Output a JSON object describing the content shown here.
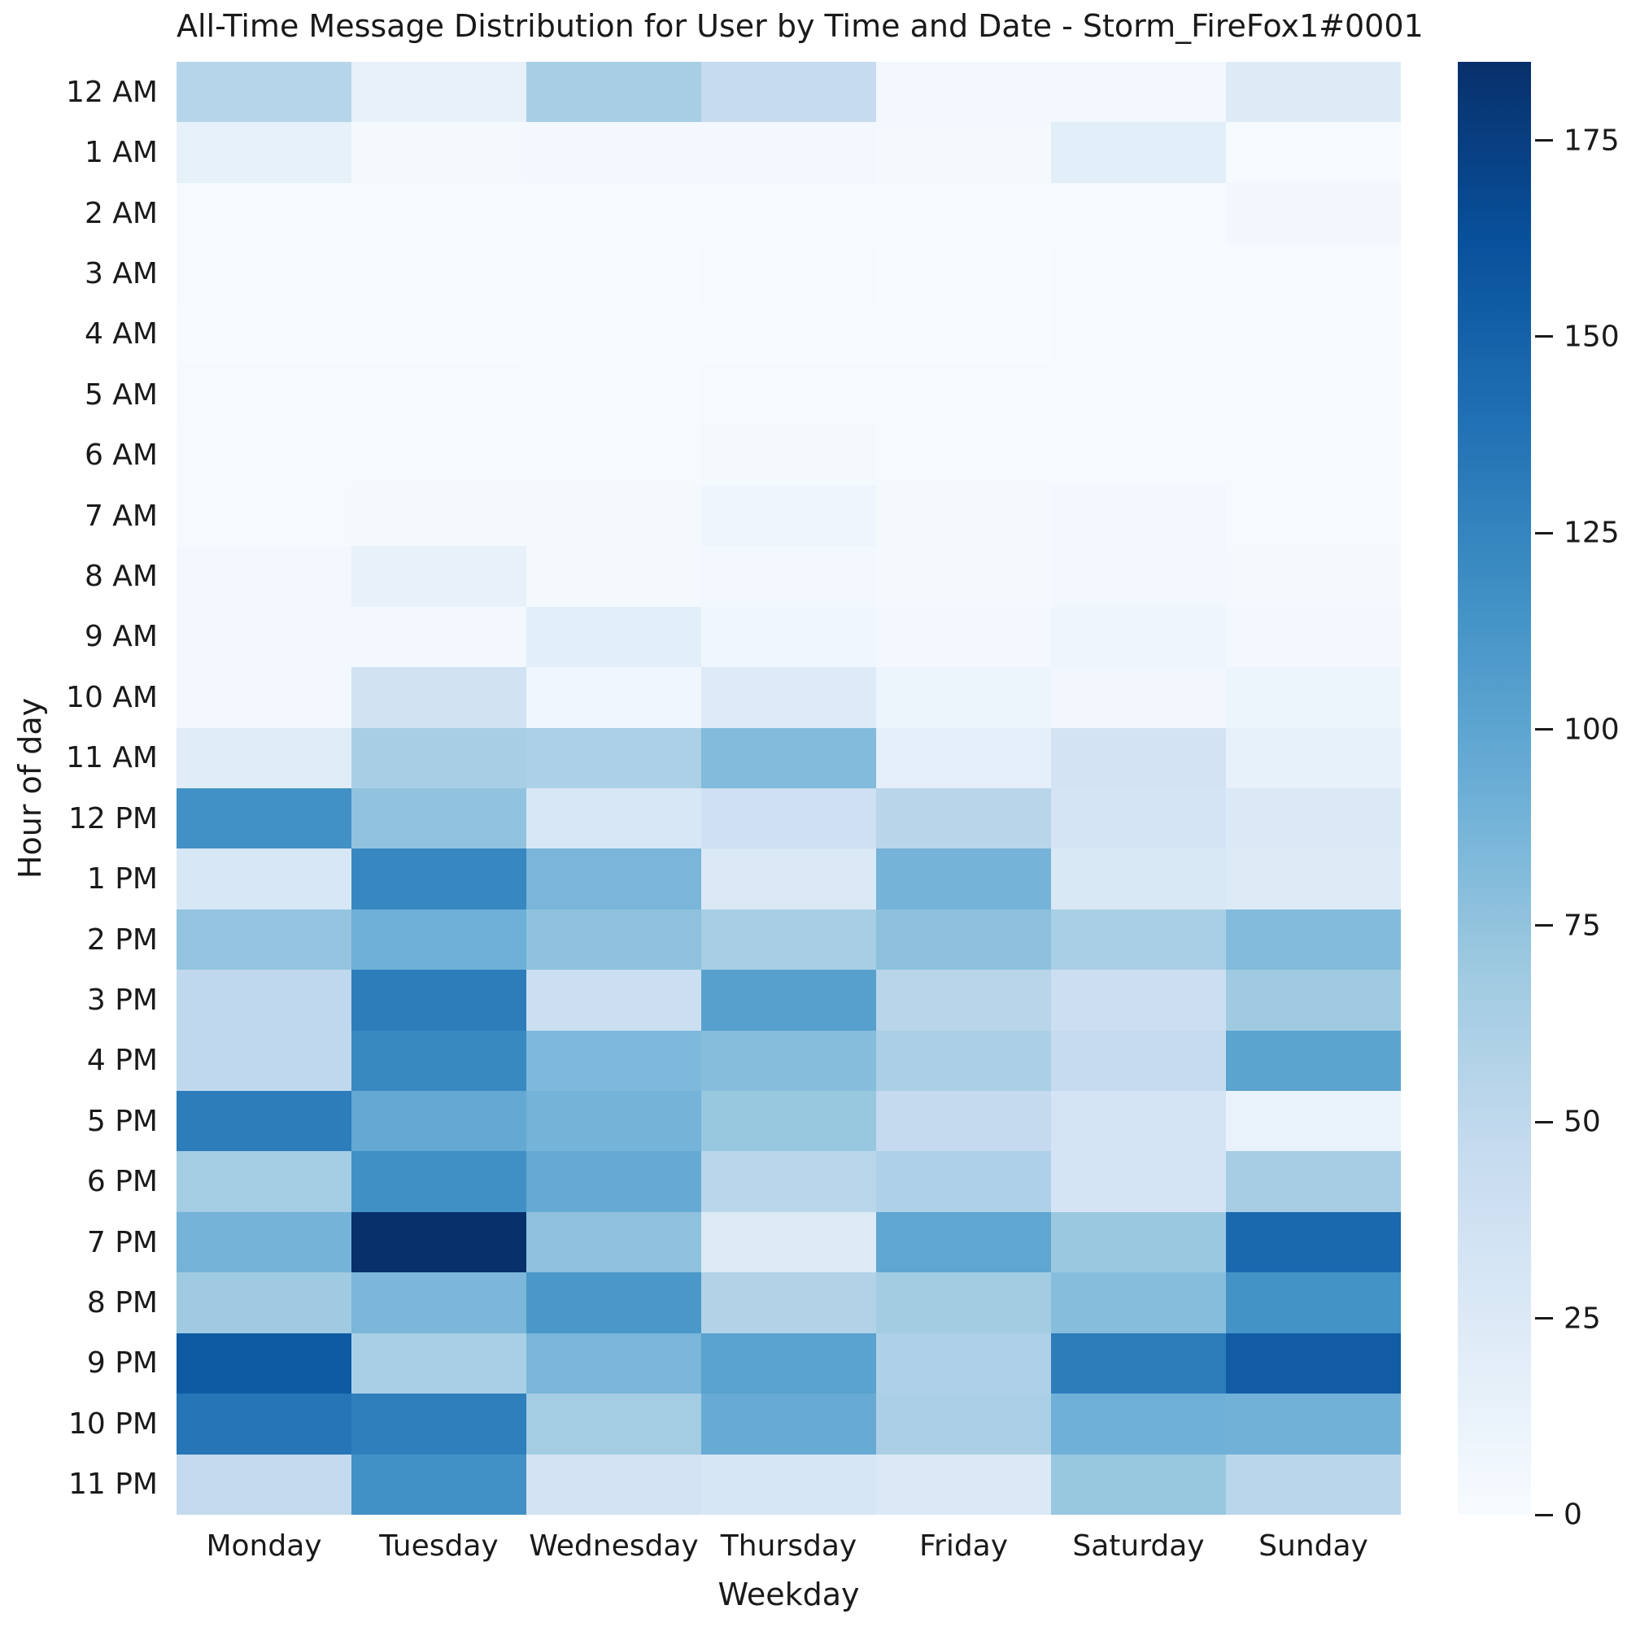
{
  "figure": {
    "title": "All-Time Message Distribution for User by Time and Date - Storm_FireFox1#0001"
  },
  "chart_data": {
    "type": "heatmap",
    "title": "All-Time Message Distribution for User by Time and Date - Storm_FireFox1#0001",
    "xlabel": "Weekday",
    "ylabel": "Hour of day",
    "columns": [
      "Monday",
      "Tuesday",
      "Wednesday",
      "Thursday",
      "Friday",
      "Saturday",
      "Sunday"
    ],
    "rows": [
      "12 AM",
      "1 AM",
      "2 AM",
      "3 AM",
      "4 AM",
      "5 AM",
      "6 AM",
      "7 AM",
      "8 AM",
      "9 AM",
      "10 AM",
      "11 AM",
      "12 PM",
      "1 PM",
      "2 PM",
      "3 PM",
      "4 PM",
      "5 PM",
      "6 PM",
      "7 PM",
      "8 PM",
      "9 PM",
      "10 PM",
      "11 PM"
    ],
    "values": [
      [
        55,
        14,
        64,
        46,
        4,
        5,
        23
      ],
      [
        15,
        3,
        4,
        4,
        3,
        19,
        2
      ],
      [
        1,
        1,
        1,
        2,
        1,
        2,
        6
      ],
      [
        1,
        0,
        0,
        1,
        0,
        1,
        2
      ],
      [
        0,
        0,
        0,
        0,
        0,
        1,
        1
      ],
      [
        1,
        1,
        0,
        1,
        1,
        1,
        1
      ],
      [
        2,
        2,
        2,
        3,
        2,
        2,
        2
      ],
      [
        2,
        3,
        3,
        8,
        3,
        5,
        2
      ],
      [
        4,
        14,
        3,
        5,
        3,
        4,
        3
      ],
      [
        4,
        5,
        19,
        7,
        4,
        8,
        5
      ],
      [
        5,
        36,
        7,
        24,
        10,
        6,
        9
      ],
      [
        21,
        64,
        61,
        82,
        17,
        34,
        15
      ],
      [
        116,
        75,
        29,
        39,
        54,
        33,
        26
      ],
      [
        29,
        123,
        86,
        26,
        88,
        28,
        25
      ],
      [
        74,
        91,
        76,
        64,
        77,
        63,
        82
      ],
      [
        50,
        130,
        41,
        104,
        54,
        40,
        69
      ],
      [
        50,
        122,
        84,
        80,
        62,
        46,
        101
      ],
      [
        130,
        97,
        88,
        72,
        47,
        33,
        13
      ],
      [
        66,
        117,
        96,
        53,
        60,
        33,
        65
      ],
      [
        88,
        185,
        76,
        25,
        99,
        71,
        145
      ],
      [
        69,
        85,
        111,
        58,
        67,
        80,
        115
      ],
      [
        155,
        63,
        86,
        102,
        60,
        130,
        154
      ],
      [
        136,
        129,
        66,
        95,
        62,
        91,
        90
      ],
      [
        48,
        116,
        34,
        30,
        26,
        72,
        53
      ]
    ],
    "vmin": 0,
    "vmax": 185,
    "colormap": "Blues",
    "colorbar_ticks": [
      0,
      25,
      50,
      75,
      100,
      125,
      150,
      175
    ],
    "colorbar_position": "right",
    "grid": false
  },
  "colors": {
    "background": "#ffffff",
    "text": "#1a1a1a",
    "colormap_anchors": [
      [
        247,
        251,
        255
      ],
      [
        222,
        235,
        247
      ],
      [
        198,
        219,
        239
      ],
      [
        158,
        202,
        225
      ],
      [
        107,
        174,
        214
      ],
      [
        66,
        146,
        198
      ],
      [
        33,
        113,
        181
      ],
      [
        8,
        81,
        156
      ],
      [
        8,
        48,
        107
      ]
    ]
  }
}
